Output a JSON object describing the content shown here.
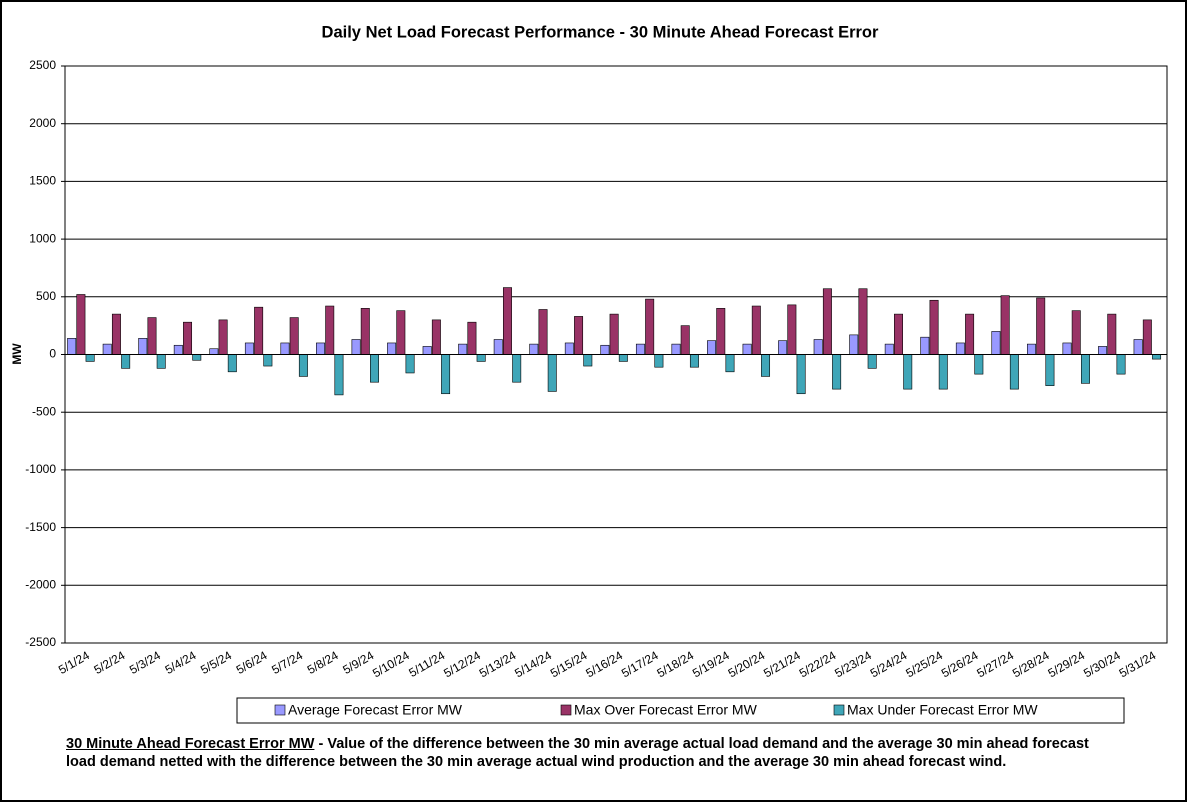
{
  "chart_data": {
    "type": "bar",
    "title": "Daily Net Load Forecast Performance - 30 Minute Ahead Forecast Error",
    "y_label": "MW",
    "categories": [
      "5/1/24",
      "5/2/24",
      "5/3/24",
      "5/4/24",
      "5/5/24",
      "5/6/24",
      "5/7/24",
      "5/8/24",
      "5/9/24",
      "5/10/24",
      "5/11/24",
      "5/12/24",
      "5/13/24",
      "5/14/24",
      "5/15/24",
      "5/16/24",
      "5/17/24",
      "5/18/24",
      "5/19/24",
      "5/20/24",
      "5/21/24",
      "5/22/24",
      "5/23/24",
      "5/24/24",
      "5/25/24",
      "5/26/24",
      "5/27/24",
      "5/28/24",
      "5/29/24",
      "5/30/24",
      "5/31/24"
    ],
    "series": [
      {
        "name": "Average Forecast Error MW",
        "color": "#9999ff",
        "values": [
          140,
          90,
          140,
          80,
          50,
          100,
          100,
          100,
          130,
          100,
          70,
          90,
          130,
          90,
          100,
          80,
          90,
          90,
          120,
          90,
          120,
          130,
          170,
          90,
          150,
          100,
          200,
          90,
          100,
          70,
          130
        ]
      },
      {
        "name": "Max Over Forecast Error MW",
        "color": "#993366",
        "values": [
          520,
          350,
          320,
          280,
          300,
          410,
          320,
          420,
          400,
          380,
          300,
          280,
          580,
          390,
          330,
          350,
          480,
          250,
          400,
          420,
          430,
          570,
          570,
          350,
          470,
          350,
          510,
          490,
          380,
          350,
          300
        ]
      },
      {
        "name": "Max Under Forecast Error MW",
        "color": "#3fa6b8",
        "values": [
          -60,
          -120,
          -120,
          -50,
          -150,
          -100,
          -190,
          -350,
          -240,
          -160,
          -340,
          -60,
          -240,
          -320,
          -100,
          -60,
          -110,
          -110,
          -150,
          -190,
          -340,
          -300,
          -120,
          -300,
          -300,
          -170,
          -300,
          -270,
          -250,
          -170,
          -40
        ]
      }
    ],
    "ylim": [
      -2500,
      2500
    ],
    "yticks": [
      -2500,
      -2000,
      -1500,
      -1000,
      -500,
      0,
      500,
      1000,
      1500,
      2000,
      2500
    ],
    "grid": true,
    "legend": "bottom",
    "note_term": "30 Minute Ahead Forecast Error MW",
    "note_text": " - Value of the difference between the 30 min average actual load demand and the average 30 min ahead forecast load demand netted with the difference between the 30 min average actual wind production and the average 30 min ahead forecast wind."
  }
}
